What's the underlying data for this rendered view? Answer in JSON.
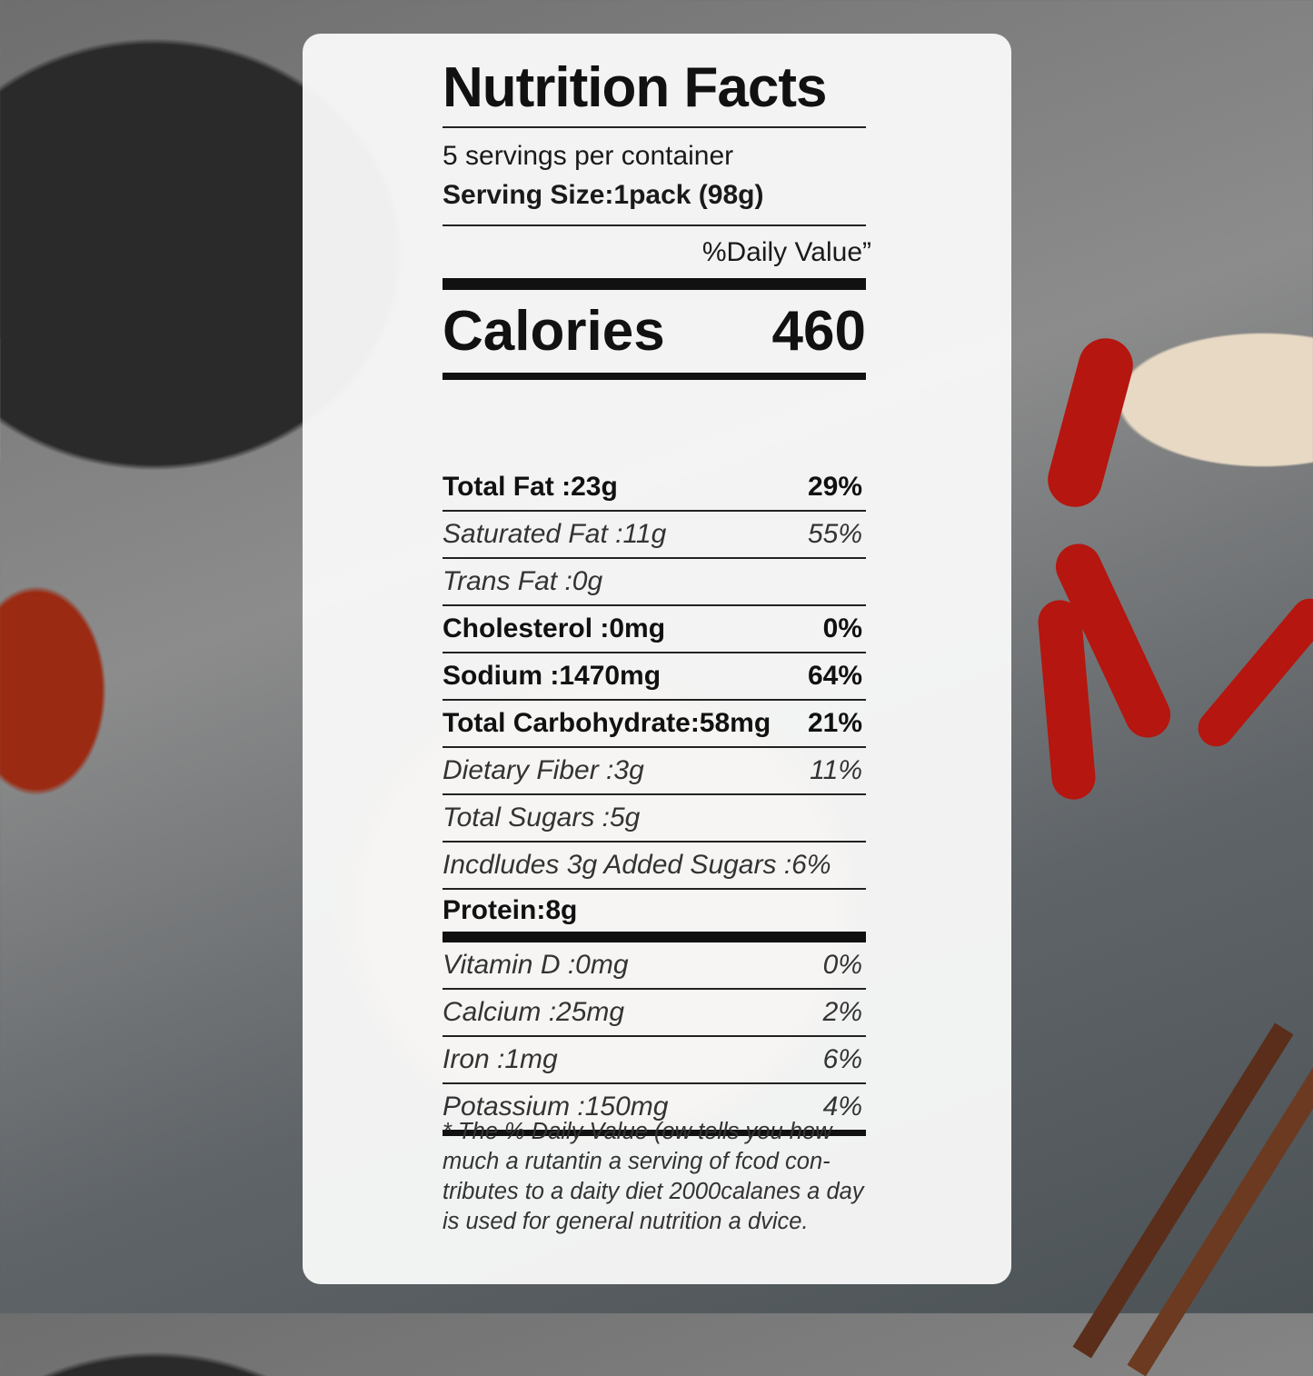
{
  "label": {
    "title": "Nutrition Facts",
    "servings": "5 servings per container",
    "serving_size": "Serving Size:1pack (98g)",
    "daily_value_header": "%Daily Value”",
    "calories_label": "Calories",
    "calories_value": "460",
    "rows": [
      {
        "name": "Total Fat :23g",
        "dv": "29%",
        "style": "b"
      },
      {
        "name": "Saturated Fat :11g",
        "dv": "55%",
        "style": "i"
      },
      {
        "name": "Trans Fat  :0g",
        "dv": "",
        "style": "i"
      },
      {
        "name": "Cholesterol :0mg",
        "dv": "0%",
        "style": "b"
      },
      {
        "name": "Sodium :1470mg",
        "dv": "64%",
        "style": "b"
      },
      {
        "name": "Total Carbohydrate:58mg",
        "dv": "21%",
        "style": "b"
      },
      {
        "name": "Dietary Fiber  :3g",
        "dv": "11%",
        "style": "i"
      },
      {
        "name": "Total Sugars :5g",
        "dv": "",
        "style": "i"
      },
      {
        "name": "Incdludes 3g Added Sugars :6%",
        "dv": "",
        "style": "i"
      },
      {
        "name": "Protein:8g",
        "dv": "",
        "style": "b thick"
      },
      {
        "name": "Vitamin D :0mg",
        "dv": "0%",
        "style": "i"
      },
      {
        "name": "Calcium :25mg",
        "dv": "2%",
        "style": "i"
      },
      {
        "name": "Iron :1mg",
        "dv": "6%",
        "style": "i"
      },
      {
        "name": "Potassium :150mg",
        "dv": "4%",
        "style": "i last"
      }
    ],
    "footnote": "* The % Daily Value (ow tells you how much a rutantin a serving of fcod con-tributes to a daity diet 2000calanes a day is used for general nutrition a dvice."
  }
}
